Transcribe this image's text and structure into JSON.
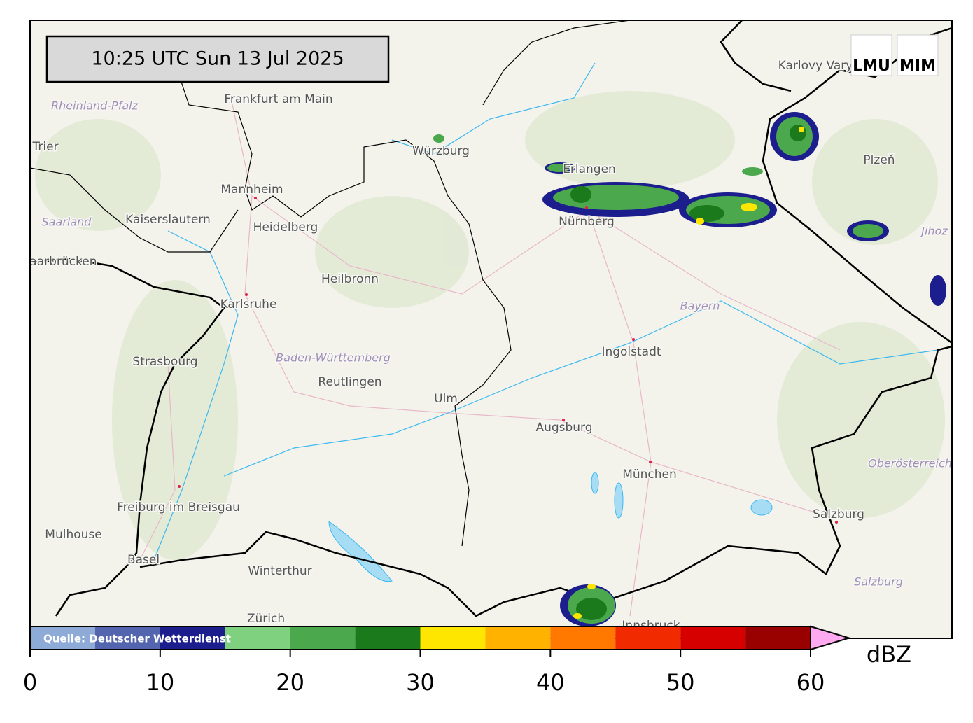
{
  "timestamp": "10:25 UTC  Sun 13 Jul 2025",
  "logos": [
    "LMU",
    "MIM"
  ],
  "source": "Quelle: Deutscher Wetterdienst",
  "cities": [
    "Frankfurt am Main",
    "Trier",
    "Kaiserslautern",
    "Mannheim",
    "Heidelberg",
    "Saarbrücken",
    "Karlsruhe",
    "Heilbronn",
    "Würzburg",
    "Erlangen",
    "Nürnberg",
    "Karlovy Vary",
    "Plzeň",
    "Ingolstadt",
    "Strasbourg",
    "Reutlingen",
    "Ulm",
    "Augsburg",
    "München",
    "Freiburg im Breisgau",
    "Mulhouse",
    "Basel",
    "Winterthur",
    "Zürich",
    "Salzburg",
    "Innsbruck"
  ],
  "regions": [
    "Rheinland-Pfalz",
    "Saarland",
    "Bayern",
    "Baden-Württemberg",
    "Oberösterreich",
    "Salzburg",
    "Jihoz"
  ],
  "colorbar": {
    "unit": "dBZ",
    "bounds": [
      0,
      5,
      10,
      15,
      20,
      25,
      30,
      35,
      40,
      45,
      50,
      55,
      60
    ],
    "colors": [
      "#8eaad6",
      "#5465b0",
      "#1c1e8e",
      "#7fd07f",
      "#4ca84c",
      "#1b7a1b",
      "#ffe600",
      "#ffb300",
      "#ff7800",
      "#f22a00",
      "#d60000",
      "#990000"
    ],
    "extend_color": "#ffaaf0",
    "ticks": [
      0,
      10,
      20,
      30,
      40,
      50,
      60
    ]
  }
}
